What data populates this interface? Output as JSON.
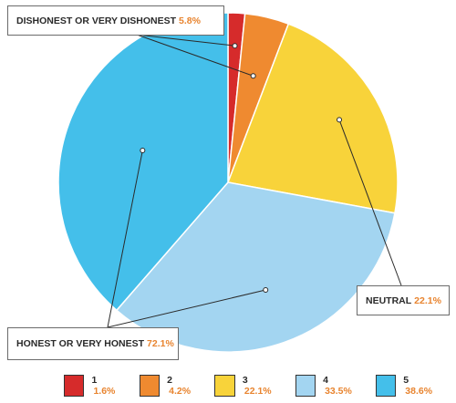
{
  "chart_data": {
    "type": "pie",
    "categories": [
      "1",
      "2",
      "3",
      "4",
      "5"
    ],
    "values": [
      1.6,
      4.2,
      22.1,
      33.5,
      38.6
    ],
    "value_labels": [
      "1.6%",
      "4.2%",
      "22.1%",
      "33.5%",
      "38.6%"
    ],
    "colors": [
      "#d62b2b",
      "#ef8a30",
      "#f8d33a",
      "#a3d5f1",
      "#44bfea"
    ],
    "start_angle": "12 o'clock",
    "direction": "clockwise",
    "legend_position": "bottom",
    "annotations": [
      {
        "label": "DISHONEST OR VERY DISHONEST",
        "value": "5.8%",
        "categories": [
          "1",
          "2"
        ]
      },
      {
        "label": "NEUTRAL",
        "value": "22.1%",
        "categories": [
          "3"
        ]
      },
      {
        "label": "HONEST OR VERY HONEST",
        "value": "72.1%",
        "categories": [
          "4",
          "5"
        ]
      }
    ]
  }
}
